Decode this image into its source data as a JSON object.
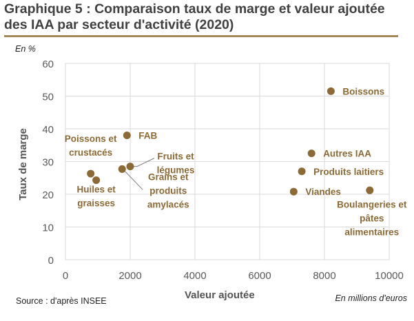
{
  "page": {
    "title": "Graphique 5 : Comparaison taux de marge et valeur ajoutée des IAA par secteur d'activité (2020)",
    "unit_y": "En %",
    "unit_x": "En millions d'euros",
    "source": "Source : d'après INSEE"
  },
  "colors": {
    "point": "#8c6a35",
    "rule": "#a5875a",
    "grid": "#d9d9d9",
    "label": "#8c6a35",
    "axis_text": "#595959"
  },
  "chart_data": {
    "type": "scatter",
    "title": "Graphique 5 : Comparaison taux de marge et valeur ajoutée des IAA par secteur d'activité (2020)",
    "xlabel": "Valeur ajoutée",
    "ylabel": "Taux de marge",
    "xlim": [
      0,
      10000
    ],
    "ylim": [
      0,
      60
    ],
    "xticks": [
      0,
      2000,
      4000,
      6000,
      8000,
      10000
    ],
    "yticks": [
      0,
      10,
      20,
      30,
      40,
      50,
      60
    ],
    "grid": true,
    "points": [
      {
        "label": "Boissons",
        "x": 8200,
        "y": 51.5
      },
      {
        "label": "FAB",
        "x": 1900,
        "y": 38
      },
      {
        "label": "Autres IAA",
        "x": 7600,
        "y": 32.5
      },
      {
        "label": "Fruits et légumes",
        "x": 2000,
        "y": 28.5
      },
      {
        "label": "Grains et produits amylacés",
        "x": 1750,
        "y": 27.7
      },
      {
        "label": "Produits laitiers",
        "x": 7300,
        "y": 27
      },
      {
        "label": "Poissons et crustacés",
        "x": 780,
        "y": 26.3
      },
      {
        "label": "Huiles et graisses",
        "x": 950,
        "y": 24.3
      },
      {
        "label": "Viandes",
        "x": 7050,
        "y": 20.8
      },
      {
        "label": "Boulangeries et pâtes alimentaires",
        "x": 9400,
        "y": 21.2
      }
    ]
  }
}
